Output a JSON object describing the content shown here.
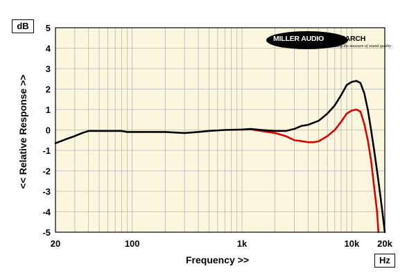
{
  "chart_data": {
    "type": "line",
    "xlabel": "Frequency >>",
    "ylabel": "<< Relative Response >>",
    "x_unit": "Hz",
    "y_unit": "dB",
    "x_scale": "log",
    "xlim": [
      20,
      20000
    ],
    "ylim": [
      -5,
      5
    ],
    "grid": true,
    "x_ticks": [
      {
        "value": 20,
        "label": "20"
      },
      {
        "value": 100,
        "label": "100"
      },
      {
        "value": 1000,
        "label": "1k"
      },
      {
        "value": 10000,
        "label": "10k"
      },
      {
        "value": 20000,
        "label": "20k"
      }
    ],
    "y_ticks": [
      {
        "value": 5,
        "label": "5"
      },
      {
        "value": 4,
        "label": "4"
      },
      {
        "value": 3,
        "label": "3"
      },
      {
        "value": 2,
        "label": "2"
      },
      {
        "value": 1,
        "label": "1"
      },
      {
        "value": 0,
        "label": "0"
      },
      {
        "value": -1,
        "label": "-1"
      },
      {
        "value": -2,
        "label": "-2"
      },
      {
        "value": -3,
        "label": "-3"
      },
      {
        "value": -4,
        "label": "-4"
      },
      {
        "value": -5,
        "label": "-5"
      }
    ],
    "series": [
      {
        "color": "#000000",
        "points": [
          [
            20,
            -0.65
          ],
          [
            25,
            -0.45
          ],
          [
            30,
            -0.3
          ],
          [
            35,
            -0.15
          ],
          [
            40,
            -0.05
          ],
          [
            50,
            -0.05
          ],
          [
            60,
            -0.05
          ],
          [
            70,
            -0.05
          ],
          [
            80,
            -0.05
          ],
          [
            90,
            -0.1
          ],
          [
            100,
            -0.1
          ],
          [
            150,
            -0.1
          ],
          [
            200,
            -0.1
          ],
          [
            300,
            -0.15
          ],
          [
            400,
            -0.1
          ],
          [
            500,
            -0.05
          ],
          [
            700,
            0
          ],
          [
            1000,
            0.02
          ],
          [
            1200,
            0.05
          ],
          [
            1500,
            0
          ],
          [
            2000,
            -0.05
          ],
          [
            2500,
            -0.05
          ],
          [
            3000,
            0.05
          ],
          [
            3500,
            0.2
          ],
          [
            4000,
            0.25
          ],
          [
            5000,
            0.45
          ],
          [
            6000,
            0.8
          ],
          [
            7000,
            1.2
          ],
          [
            8000,
            1.7
          ],
          [
            9000,
            2.2
          ],
          [
            10000,
            2.35
          ],
          [
            11000,
            2.4
          ],
          [
            12000,
            2.3
          ],
          [
            13000,
            1.8
          ],
          [
            14000,
            1.0
          ],
          [
            15000,
            0
          ],
          [
            16000,
            -1.0
          ],
          [
            17000,
            -2.0
          ],
          [
            18000,
            -3.0
          ],
          [
            19000,
            -4.0
          ],
          [
            20000,
            -5.0
          ]
        ]
      },
      {
        "color": "#dd0000",
        "points": [
          [
            1000,
            0.02
          ],
          [
            1200,
            0.03
          ],
          [
            1500,
            -0.05
          ],
          [
            2000,
            -0.15
          ],
          [
            2500,
            -0.3
          ],
          [
            3000,
            -0.5
          ],
          [
            3500,
            -0.55
          ],
          [
            4000,
            -0.6
          ],
          [
            4500,
            -0.6
          ],
          [
            5000,
            -0.55
          ],
          [
            6000,
            -0.3
          ],
          [
            7000,
            0.0
          ],
          [
            8000,
            0.4
          ],
          [
            9000,
            0.8
          ],
          [
            10000,
            0.95
          ],
          [
            11000,
            1.0
          ],
          [
            12000,
            0.9
          ],
          [
            13000,
            0.3
          ],
          [
            14000,
            -0.5
          ],
          [
            15000,
            -1.5
          ],
          [
            16000,
            -2.8
          ],
          [
            17000,
            -4.0
          ],
          [
            17500,
            -5.0
          ]
        ]
      }
    ]
  },
  "logo": {
    "name_main": "MILLER AUDIO ",
    "name_tail": "RESEARCH",
    "tagline": "Getting the measure of sound quality"
  }
}
